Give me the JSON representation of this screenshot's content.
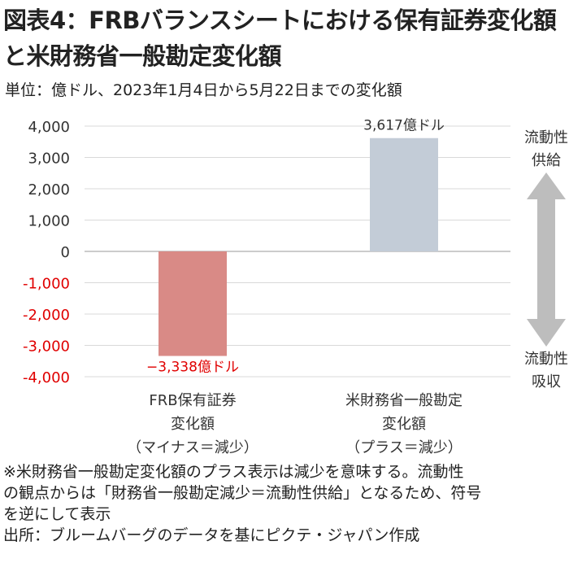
{
  "header": {
    "title_line1": "図表4：FRBバランスシートにおける保有証券変化額",
    "title_line2": "と米財務省一般勘定変化額",
    "subtitle": "単位：億ドル、2023年1月4日から5月22日までの変化額"
  },
  "chart_data": {
    "type": "bar",
    "categories": [
      [
        "FRB保有証券",
        "変化額",
        "（マイナス＝減少）"
      ],
      [
        "米財務省一般勘定",
        "変化額",
        "（プラス＝減少）"
      ]
    ],
    "values": [
      -3338,
      3617
    ],
    "data_labels": [
      "−3,338億ドル",
      "3,617億ドル"
    ],
    "ylim": [
      -4000,
      4000
    ],
    "yticks": [
      4000,
      3000,
      2000,
      1000,
      0,
      -1000,
      -2000,
      -3000,
      -4000
    ],
    "ytick_labels": [
      "4,000",
      "3,000",
      "2,000",
      "1,000",
      "0",
      "-1,000",
      "-2,000",
      "-3,000",
      "-4,000"
    ],
    "grid": true,
    "bar_colors": [
      "#d98a86",
      "#c3ccd7"
    ],
    "negative_tick_color": "#e00000",
    "negative_label_color": "#e00000",
    "arrow": {
      "top_label": [
        "流動性",
        "供給"
      ],
      "bottom_label": [
        "流動性",
        "吸収"
      ],
      "color": "#bdbdbd"
    }
  },
  "notes": {
    "line1": "※米財務省一般勘定変化額のプラス表示は減少を意味する。流動性",
    "line2": "の観点からは「財務省一般勘定減少＝流動性供給」となるため、符号",
    "line3": "を逆にして表示",
    "source": "出所：ブルームバーグのデータを基にピクテ・ジャパン作成"
  }
}
